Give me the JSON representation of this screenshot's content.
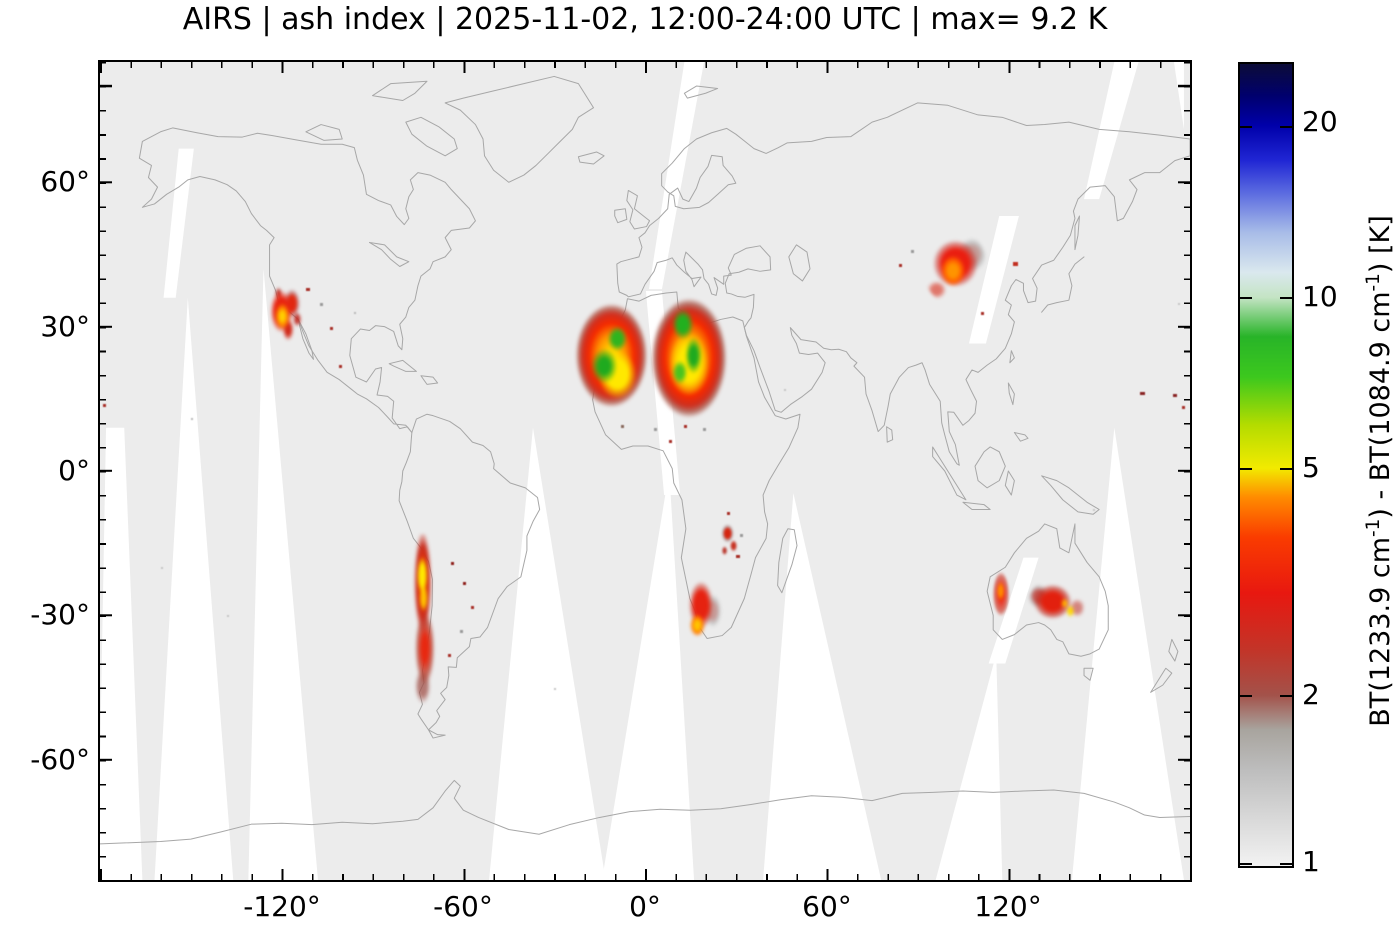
{
  "title": "AIRS | ash index | 2025-11-02, 12:00-24:00 UTC | max= 9.2 K",
  "header": {
    "instrument": "AIRS",
    "product": "ash index",
    "date": "2025-11-02",
    "time_window": "12:00-24:00 UTC",
    "max_label": "max= 9.2 K",
    "max_value_K": 9.2
  },
  "colors": {
    "coverage_swath": "#ececec",
    "no_coverage_gap": "#ffffff",
    "coastline": "#a7a7a7",
    "frame": "#000000",
    "low_gray": "#bdbdbd",
    "mid_red": "#e81810",
    "mid_yellow": "#f2ea00",
    "mid_green": "#28b428",
    "high_blue": "#0000aa",
    "top_navy": "#0c0c38"
  },
  "chart_data": {
    "type": "heatmap",
    "title": "AIRS | ash index | 2025-11-02, 12:00-24:00 UTC | max= 9.2 K",
    "projection": "equirectangular world map",
    "x_range_deg_lon": [
      -180,
      180
    ],
    "y_range_deg_lat": [
      -85,
      85
    ],
    "x_tick_labels": [
      "-120°",
      "-60°",
      "0°",
      "60°",
      "120°"
    ],
    "y_tick_labels": [
      "60°",
      "30°",
      "0°",
      "-30°",
      "-60°"
    ],
    "x_minor_tick_step_deg": 10,
    "y_minor_tick_step_deg": 5,
    "grid": false,
    "max_value_K": 9.2,
    "colorbar": {
      "label": "BT(1233.9 cm⁻¹) - BT(1084.9 cm⁻¹) [K]",
      "label_parts": [
        "BT(1233.9 cm",
        "-1",
        ") - BT(1084.9 cm",
        "-1",
        ") [K]"
      ],
      "scale": "log",
      "range_K": [
        1,
        25
      ],
      "ticks": [
        20,
        10,
        5,
        2,
        1
      ],
      "tick_labels": [
        "20",
        "10",
        "5",
        "2",
        "1"
      ],
      "color_sequence_bottom_to_top": [
        "light gray",
        "gray",
        "brick red",
        "red",
        "orange",
        "yellow",
        "green",
        "pale green-white",
        "light blue",
        "blue",
        "dark navy"
      ]
    },
    "regions": [
      {
        "id": "us_west",
        "area": "western United States (California/Nevada/Arizona)",
        "lon": [
          -125,
          -109
        ],
        "lat": [
          25,
          40
        ],
        "peak_K": 5,
        "character": "speckled red cluster with small yellow-orange core"
      },
      {
        "id": "andes",
        "area": "Andes / Chile",
        "lon": [
          -80,
          -66
        ],
        "lat": [
          -49,
          -13
        ],
        "peak_K": 6,
        "character": "narrow elongated red strip with yellow core near -20…-28°"
      },
      {
        "id": "sahara_west",
        "area": "western Sahara / Mauritania-Mali",
        "lon": [
          -23,
          1
        ],
        "lat": [
          13,
          35
        ],
        "peak_K": 9.2,
        "character": "large mottled blob: red rim, orange-yellow interior, green cores, gray southern fringe"
      },
      {
        "id": "sahara_east",
        "area": "central Sahara / Algeria-Libya-Niger-Chad",
        "lon": [
          2,
          27
        ],
        "lat": [
          11,
          36
        ],
        "peak_K": 9,
        "character": "large mottled blob: red rim, yellow interior, green streaks"
      },
      {
        "id": "zambia",
        "area": "Zambia / Malawi region",
        "lon": [
          23,
          33
        ],
        "lat": [
          -20,
          -10
        ],
        "peak_K": 3,
        "character": "small red speckle patch with gray fringe"
      },
      {
        "id": "s_africa",
        "area": "South Africa / Namibia",
        "lon": [
          14,
          26
        ],
        "lat": [
          -36,
          -21
        ],
        "peak_K": 5,
        "character": "red patch with orange-yellow western core, gray speckle east"
      },
      {
        "id": "ne_asia",
        "area": "Mongolia / northern China",
        "lon": [
          92,
          113
        ],
        "lat": [
          35,
          50
        ],
        "peak_K": 4.5,
        "character": "red blob with orange core, gray fringe northeast, red streaks southwest"
      },
      {
        "id": "aus_west",
        "area": "Western Australia coast",
        "lon": [
          114.5,
          120.5
        ],
        "lat": [
          -30.5,
          -20.5
        ],
        "peak_K": 4.5,
        "character": "bright red-orange vertical strip"
      },
      {
        "id": "aus_main",
        "area": "central-southern Australia",
        "lon": [
          126,
          145
        ],
        "lat": [
          -33.5,
          -22
        ],
        "peak_K": 5,
        "character": "speckled red patch with gray mix and small yellow flecks east"
      }
    ],
    "specks": [
      [
        -179,
        14,
        "#a83028",
        3,
        3
      ],
      [
        -150,
        11,
        "#b8b8b8",
        2,
        2
      ],
      [
        -160,
        -20,
        "#c4c4c4",
        2,
        2
      ],
      [
        -138,
        -30,
        "#c4c4c4",
        2,
        2
      ],
      [
        -112,
        38,
        "#a83028",
        4,
        3
      ],
      [
        -107.5,
        35,
        "#9a9a9a",
        3,
        3
      ],
      [
        -104,
        30,
        "#a83028",
        3,
        3
      ],
      [
        -101,
        22,
        "#a83028",
        3,
        3
      ],
      [
        -96,
        33,
        "#b8b8b8",
        2,
        2
      ],
      [
        -64,
        -19,
        "#8e1f1a",
        3,
        3
      ],
      [
        -60,
        -23,
        "#8e1f1a",
        3,
        3
      ],
      [
        -57.5,
        -28,
        "#a83028",
        3,
        3
      ],
      [
        -61,
        -33,
        "#9a9a9a",
        3,
        3
      ],
      [
        -65,
        -38,
        "#a83028",
        3,
        3
      ],
      [
        -30,
        -45,
        "#c4c4c4",
        2,
        2
      ],
      [
        -8,
        9.5,
        "#8a6a5e",
        3,
        3
      ],
      [
        3,
        9,
        "#9a9a9a",
        3,
        3
      ],
      [
        13,
        9.5,
        "#a83028",
        3,
        3
      ],
      [
        19,
        9,
        "#9a9a9a",
        3,
        3
      ],
      [
        8,
        6.5,
        "#a83028",
        3,
        3
      ],
      [
        27,
        -8.5,
        "#a83028",
        3,
        3
      ],
      [
        31.5,
        -13,
        "#9a9a9a",
        3,
        3
      ],
      [
        30,
        -17.5,
        "#a83028",
        4,
        3
      ],
      [
        46,
        17,
        "#c4c4c4",
        2,
        2
      ],
      [
        84,
        43,
        "#a83028",
        3,
        3
      ],
      [
        88,
        46,
        "#9a9a9a",
        3,
        3
      ],
      [
        121.5,
        43.5,
        "#c23022",
        5,
        4
      ],
      [
        111,
        33,
        "#a83028",
        3,
        3
      ],
      [
        148,
        -8,
        "#c4c4c4",
        2,
        2
      ],
      [
        163.5,
        16.5,
        "#8a2424",
        5,
        3
      ],
      [
        174.5,
        16,
        "#8a2424",
        4,
        3
      ],
      [
        177.5,
        13.5,
        "#a83028",
        3,
        3
      ],
      [
        176,
        35,
        "#c4c4c4",
        2,
        2
      ]
    ]
  }
}
